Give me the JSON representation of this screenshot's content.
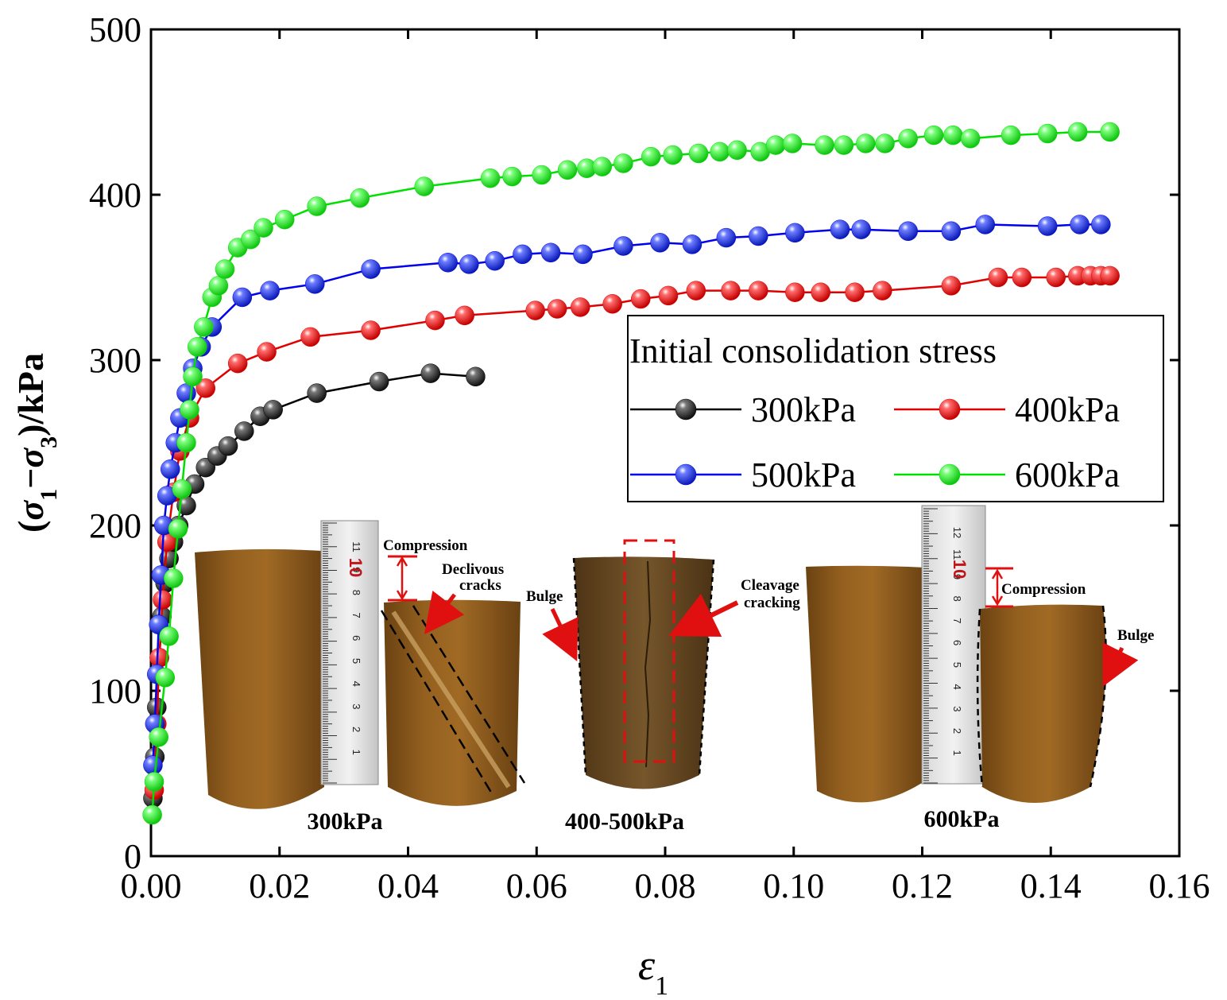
{
  "chart_data": {
    "type": "line",
    "xlabel": "ε",
    "xlabel_sub": "1",
    "ylabel": "(σ1−σ3)/kPa",
    "ylabel_parts": {
      "open": "(",
      "sigma1": "σ",
      "sub1": "1",
      "minus": "−",
      "sigma3": "σ",
      "sub3": "3",
      "close": ")/kPa"
    },
    "xlim": [
      0,
      0.16
    ],
    "ylim": [
      0,
      500
    ],
    "xticks": [
      "0.00",
      "0.02",
      "0.04",
      "0.06",
      "0.08",
      "0.10",
      "0.12",
      "0.14",
      "0.16"
    ],
    "yticks": [
      "0",
      "100",
      "200",
      "300",
      "400",
      "500"
    ],
    "xtick_values": [
      0,
      0.02,
      0.04,
      0.06,
      0.08,
      0.1,
      0.12,
      0.14,
      0.16
    ],
    "ytick_values": [
      0,
      100,
      200,
      300,
      400,
      500
    ],
    "grid": false,
    "legend": {
      "title": "Initial consolidation stress",
      "position": "center-right"
    },
    "series": [
      {
        "name": "300kPa",
        "color": "#000000",
        "marker": "#2a2a2a",
        "points": [
          [
            0.0003,
            35
          ],
          [
            0.0006,
            60
          ],
          [
            0.0009,
            90
          ],
          [
            0.0013,
            120
          ],
          [
            0.0017,
            145
          ],
          [
            0.0022,
            165
          ],
          [
            0.0028,
            180
          ],
          [
            0.0035,
            190
          ],
          [
            0.0043,
            200
          ],
          [
            0.0055,
            212
          ],
          [
            0.0068,
            225
          ],
          [
            0.0085,
            235
          ],
          [
            0.0103,
            242
          ],
          [
            0.012,
            248
          ],
          [
            0.0145,
            257
          ],
          [
            0.017,
            266
          ],
          [
            0.019,
            270
          ],
          [
            0.0258,
            280
          ],
          [
            0.0355,
            287
          ],
          [
            0.0435,
            292
          ],
          [
            0.0505,
            290
          ]
        ]
      },
      {
        "name": "400kPa",
        "color": "#e00000",
        "marker": "#e81c1c",
        "points": [
          [
            0.0005,
            40
          ],
          [
            0.0009,
            80
          ],
          [
            0.0013,
            120
          ],
          [
            0.0018,
            155
          ],
          [
            0.0025,
            190
          ],
          [
            0.0035,
            220
          ],
          [
            0.0045,
            245
          ],
          [
            0.006,
            265
          ],
          [
            0.0085,
            283
          ],
          [
            0.0135,
            298
          ],
          [
            0.018,
            305
          ],
          [
            0.0248,
            314
          ],
          [
            0.0342,
            318
          ],
          [
            0.0442,
            324
          ],
          [
            0.0488,
            327
          ],
          [
            0.0598,
            330
          ],
          [
            0.0632,
            331
          ],
          [
            0.0668,
            332
          ],
          [
            0.0718,
            334
          ],
          [
            0.0762,
            337
          ],
          [
            0.0805,
            339
          ],
          [
            0.0848,
            342
          ],
          [
            0.0902,
            342
          ],
          [
            0.0945,
            342
          ],
          [
            0.1002,
            341
          ],
          [
            0.1042,
            341
          ],
          [
            0.1095,
            341
          ],
          [
            0.1138,
            342
          ],
          [
            0.1245,
            345
          ],
          [
            0.1318,
            350
          ],
          [
            0.1355,
            350
          ],
          [
            0.1408,
            350
          ],
          [
            0.1442,
            351
          ],
          [
            0.1462,
            351
          ],
          [
            0.1478,
            351
          ],
          [
            0.1492,
            351
          ]
        ]
      },
      {
        "name": "500kPa",
        "color": "#0000f0",
        "marker": "#1a2fe0",
        "points": [
          [
            0.0003,
            55
          ],
          [
            0.0006,
            80
          ],
          [
            0.0009,
            110
          ],
          [
            0.0012,
            140
          ],
          [
            0.0016,
            170
          ],
          [
            0.002,
            200
          ],
          [
            0.0025,
            218
          ],
          [
            0.003,
            234
          ],
          [
            0.0038,
            250
          ],
          [
            0.0045,
            265
          ],
          [
            0.0055,
            280
          ],
          [
            0.0065,
            295
          ],
          [
            0.0078,
            308
          ],
          [
            0.0095,
            320
          ],
          [
            0.0142,
            338
          ],
          [
            0.0185,
            342
          ],
          [
            0.0255,
            346
          ],
          [
            0.0342,
            355
          ],
          [
            0.0462,
            359
          ],
          [
            0.0495,
            358
          ],
          [
            0.0535,
            360
          ],
          [
            0.0578,
            364
          ],
          [
            0.0622,
            365
          ],
          [
            0.0672,
            364
          ],
          [
            0.0735,
            369
          ],
          [
            0.0792,
            371
          ],
          [
            0.0842,
            370
          ],
          [
            0.0895,
            374
          ],
          [
            0.0945,
            375
          ],
          [
            0.1002,
            377
          ],
          [
            0.1072,
            379
          ],
          [
            0.1105,
            379
          ],
          [
            0.1178,
            378
          ],
          [
            0.1245,
            378
          ],
          [
            0.1298,
            382
          ],
          [
            0.1395,
            381
          ],
          [
            0.1445,
            382
          ],
          [
            0.1478,
            382
          ]
        ]
      },
      {
        "name": "600kPa",
        "color": "#00e000",
        "marker": "#22ee22",
        "points": [
          [
            0.0002,
            25
          ],
          [
            0.0005,
            45
          ],
          [
            0.0012,
            72
          ],
          [
            0.0022,
            108
          ],
          [
            0.0028,
            133
          ],
          [
            0.0035,
            168
          ],
          [
            0.0042,
            198
          ],
          [
            0.0048,
            222
          ],
          [
            0.0055,
            250
          ],
          [
            0.006,
            270
          ],
          [
            0.0065,
            290
          ],
          [
            0.0072,
            308
          ],
          [
            0.0082,
            320
          ],
          [
            0.0095,
            338
          ],
          [
            0.0105,
            345
          ],
          [
            0.0115,
            355
          ],
          [
            0.0135,
            368
          ],
          [
            0.0155,
            373
          ],
          [
            0.0175,
            380
          ],
          [
            0.0208,
            385
          ],
          [
            0.0258,
            393
          ],
          [
            0.0325,
            398
          ],
          [
            0.0425,
            405
          ],
          [
            0.0528,
            410
          ],
          [
            0.0562,
            411
          ],
          [
            0.0608,
            412
          ],
          [
            0.0648,
            415
          ],
          [
            0.0678,
            416
          ],
          [
            0.0702,
            417
          ],
          [
            0.0735,
            419
          ],
          [
            0.0778,
            423
          ],
          [
            0.0812,
            424
          ],
          [
            0.0852,
            425
          ],
          [
            0.0885,
            426
          ],
          [
            0.0912,
            427
          ],
          [
            0.0948,
            426
          ],
          [
            0.0972,
            430
          ],
          [
            0.0998,
            431
          ],
          [
            0.1048,
            430
          ],
          [
            0.1078,
            430
          ],
          [
            0.1112,
            431
          ],
          [
            0.1142,
            431
          ],
          [
            0.1178,
            434
          ],
          [
            0.1218,
            436
          ],
          [
            0.1248,
            436
          ],
          [
            0.1275,
            434
          ],
          [
            0.1338,
            436
          ],
          [
            0.1395,
            437
          ],
          [
            0.1442,
            438
          ],
          [
            0.1492,
            438
          ]
        ]
      }
    ],
    "photos": [
      {
        "caption": "300kPa",
        "annotations": [
          "Compression",
          "Declivous",
          "cracks"
        ],
        "ruler_numbers": [
          "11",
          "9",
          "8",
          "7",
          "6",
          "5",
          "4",
          "3",
          "2",
          "1"
        ],
        "ruler_red_number": "10"
      },
      {
        "caption": "400-500kPa",
        "annotations": [
          "Bulge",
          "Cleavage",
          "cracking"
        ]
      },
      {
        "caption": "600kPa",
        "annotations": [
          "Compression",
          "Bulge"
        ],
        "ruler_numbers": [
          "12",
          "11",
          "9",
          "8",
          "7",
          "6",
          "5",
          "4",
          "3",
          "2",
          "1"
        ],
        "ruler_red_number": "10"
      }
    ]
  }
}
